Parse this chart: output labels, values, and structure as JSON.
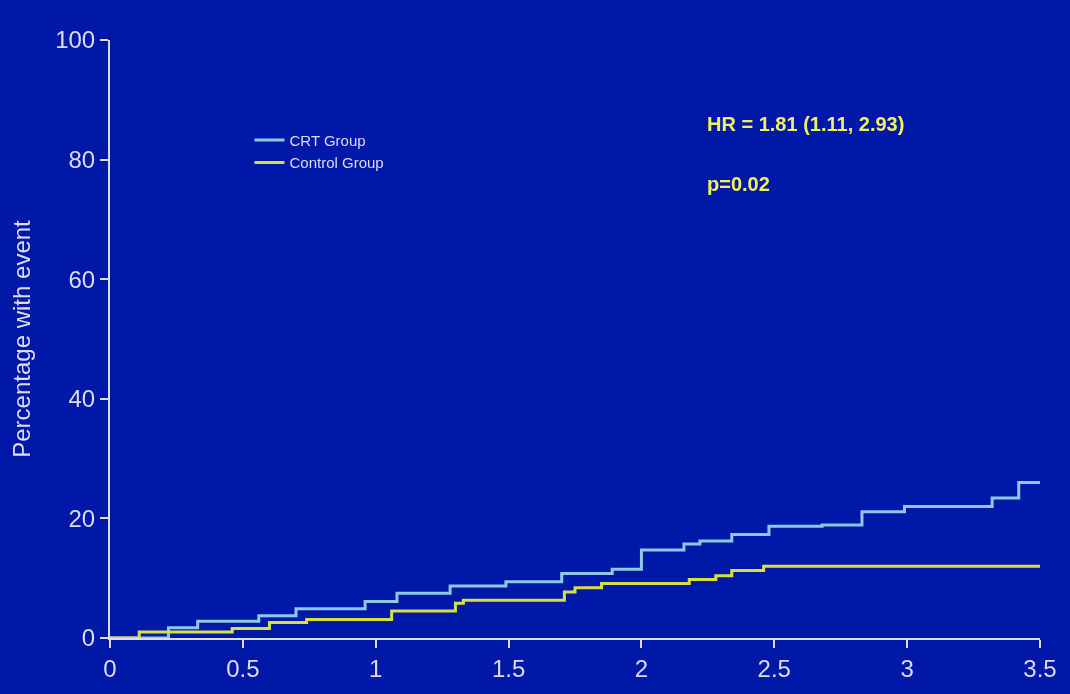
{
  "chart_data": {
    "type": "step",
    "ylabel": "Percentage with event",
    "x": [
      0,
      0.11,
      0.22,
      0.33,
      0.56,
      0.7,
      0.96,
      1.08,
      1.28,
      1.49,
      1.7,
      1.89,
      2.0,
      2.16,
      2.22,
      2.34,
      2.48,
      2.68,
      2.83,
      2.99,
      3.32,
      3.42,
      3.5
    ],
    "series": [
      {
        "name": "CRT Group",
        "color": "#8ec8e8",
        "values": [
          0,
          0,
          1.7,
          2.8,
          3.7,
          4.9,
          6.1,
          7.5,
          8.7,
          9.4,
          10.8,
          11.5,
          14.7,
          15.7,
          16.2,
          17.3,
          18.7,
          18.9,
          21.1,
          22.0,
          23.4,
          26.0,
          26.0
        ]
      },
      {
        "name": "Control Group",
        "color": "#d8e040",
        "x": [
          0,
          0.11,
          0.46,
          0.6,
          0.74,
          1.06,
          1.3,
          1.33,
          1.71,
          1.75,
          1.85,
          2.18,
          2.28,
          2.34,
          2.46,
          3.5
        ],
        "values": [
          0,
          1.0,
          1.6,
          2.6,
          3.1,
          4.5,
          5.8,
          6.3,
          7.7,
          8.4,
          9.1,
          9.8,
          10.4,
          11.3,
          12.0,
          12.0
        ]
      }
    ],
    "annotations": [
      "HR = 1.81 (1.11, 2.93)",
      "p=0.02"
    ],
    "xlim": [
      0,
      3.5
    ],
    "xticks": [
      0,
      0.5,
      1,
      1.5,
      2,
      2.5,
      3,
      3.5
    ],
    "ylim": [
      0,
      100
    ],
    "yticks": [
      0,
      20,
      40,
      60,
      80,
      100
    ],
    "grid": false,
    "legend": "top left",
    "marker": "none",
    "line_style": "solid"
  }
}
